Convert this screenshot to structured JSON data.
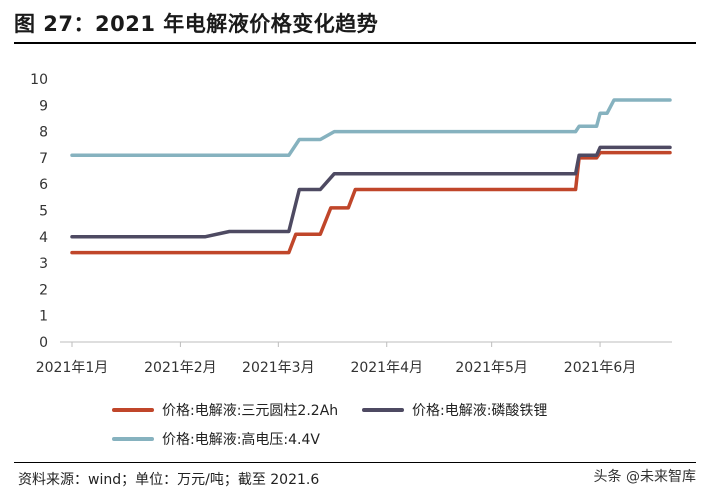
{
  "header": {
    "title": "图 27：2021 年电解液价格变化趋势"
  },
  "footer": {
    "source": "资料来源：wind；单位：万元/吨；截至 2021.6",
    "watermark": "头条 @未来智库"
  },
  "chart_data": {
    "type": "line",
    "x_tick_labels": [
      "2021年1月",
      "2021年2月",
      "2021年3月",
      "2021年4月",
      "2021年5月",
      "2021年6月"
    ],
    "ylim": [
      0,
      10
    ],
    "y_ticks": [
      0,
      1,
      2,
      3,
      4,
      5,
      6,
      7,
      8,
      9,
      10
    ],
    "grid": false,
    "legend_position": "bottom",
    "series": [
      {
        "name": "价格:电解液:三元圆柱2.2Ah",
        "color": "#C0462A",
        "points": [
          [
            "2021-01-01",
            3.4
          ],
          [
            "2021-03-04",
            3.4
          ],
          [
            "2021-03-06",
            4.1
          ],
          [
            "2021-03-13",
            4.1
          ],
          [
            "2021-03-16",
            5.1
          ],
          [
            "2021-03-21",
            5.1
          ],
          [
            "2021-03-23",
            5.8
          ],
          [
            "2021-05-25",
            5.8
          ],
          [
            "2021-05-26",
            7.0
          ],
          [
            "2021-05-31",
            7.0
          ],
          [
            "2021-06-01",
            7.2
          ],
          [
            "2021-06-21",
            7.2
          ]
        ]
      },
      {
        "name": "价格:电解液:磷酸铁锂",
        "color": "#4E4A62",
        "points": [
          [
            "2021-01-01",
            4.0
          ],
          [
            "2021-02-08",
            4.0
          ],
          [
            "2021-02-15",
            4.2
          ],
          [
            "2021-03-04",
            4.2
          ],
          [
            "2021-03-07",
            5.8
          ],
          [
            "2021-03-13",
            5.8
          ],
          [
            "2021-03-17",
            6.4
          ],
          [
            "2021-05-25",
            6.4
          ],
          [
            "2021-05-26",
            7.1
          ],
          [
            "2021-05-31",
            7.1
          ],
          [
            "2021-06-01",
            7.4
          ],
          [
            "2021-06-21",
            7.4
          ]
        ]
      },
      {
        "name": "价格:电解液:高电压:4.4V",
        "color": "#86B2BF",
        "points": [
          [
            "2021-01-01",
            7.1
          ],
          [
            "2021-03-04",
            7.1
          ],
          [
            "2021-03-07",
            7.7
          ],
          [
            "2021-03-13",
            7.7
          ],
          [
            "2021-03-17",
            8.0
          ],
          [
            "2021-05-25",
            8.0
          ],
          [
            "2021-05-26",
            8.2
          ],
          [
            "2021-05-31",
            8.2
          ],
          [
            "2021-06-01",
            8.7
          ],
          [
            "2021-06-03",
            8.7
          ],
          [
            "2021-06-05",
            9.2
          ],
          [
            "2021-06-21",
            9.2
          ]
        ]
      }
    ]
  }
}
